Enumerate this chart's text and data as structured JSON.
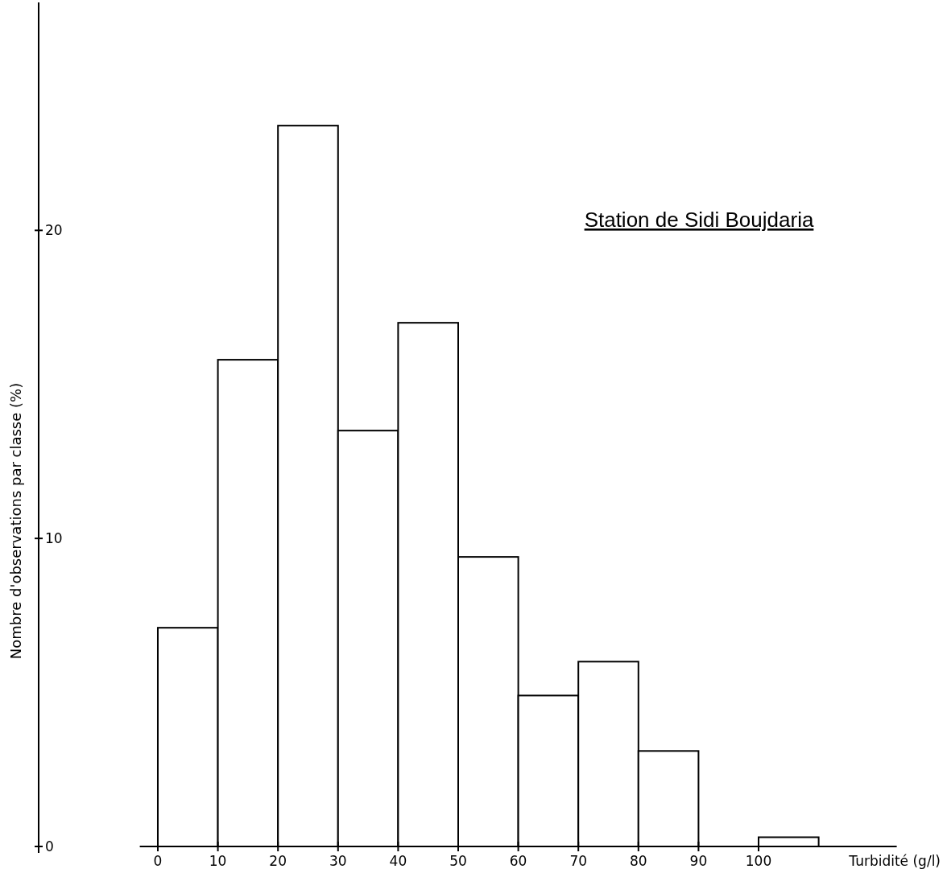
{
  "chart_data": {
    "type": "histogram",
    "title": "Station de Sidi Boujdaria",
    "xlabel": "Turbidité (g/l)",
    "ylabel": "Nombre d'observations par classe (%)",
    "bins": [
      0,
      10,
      20,
      30,
      40,
      50,
      60,
      70,
      80,
      90,
      100,
      110
    ],
    "values": [
      7.1,
      15.8,
      23.4,
      13.5,
      17.0,
      9.4,
      4.9,
      6.0,
      3.1,
      0,
      0.3
    ],
    "color": "#ffffff",
    "xlim": [
      -3,
      123
    ],
    "xticks": [
      0,
      10,
      20,
      30,
      40,
      50,
      60,
      70,
      80,
      90,
      100
    ],
    "ylim": [
      0,
      27.4
    ],
    "yticks": [
      0,
      10,
      20
    ],
    "grid": false
  }
}
